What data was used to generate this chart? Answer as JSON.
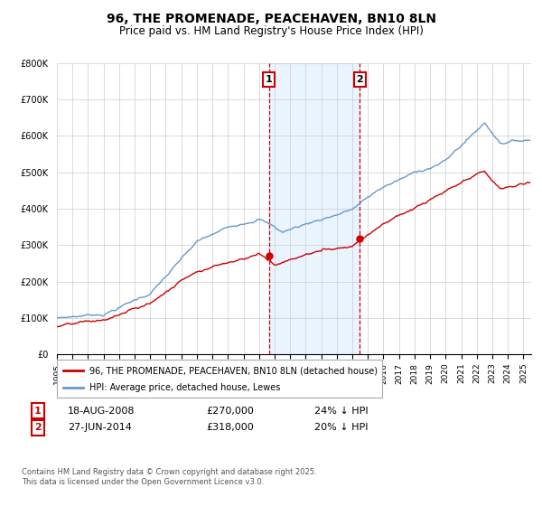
{
  "title": "96, THE PROMENADE, PEACEHAVEN, BN10 8LN",
  "subtitle": "Price paid vs. HM Land Registry's House Price Index (HPI)",
  "legend_label_red": "96, THE PROMENADE, PEACEHAVEN, BN10 8LN (detached house)",
  "legend_label_blue": "HPI: Average price, detached house, Lewes",
  "transaction1_date": "18-AUG-2008",
  "transaction1_price": 270000,
  "transaction1_label": "1",
  "transaction1_hpi_text": "24% ↓ HPI",
  "transaction2_date": "27-JUN-2014",
  "transaction2_price": 318000,
  "transaction2_label": "2",
  "transaction2_hpi_text": "20% ↓ HPI",
  "footer": "Contains HM Land Registry data © Crown copyright and database right 2025.\nThis data is licensed under the Open Government Licence v3.0.",
  "ylim_max": 800000,
  "red_color": "#cc0000",
  "blue_color": "#6699cc",
  "shading_color": "#ddeeff",
  "grid_color": "#cccccc"
}
